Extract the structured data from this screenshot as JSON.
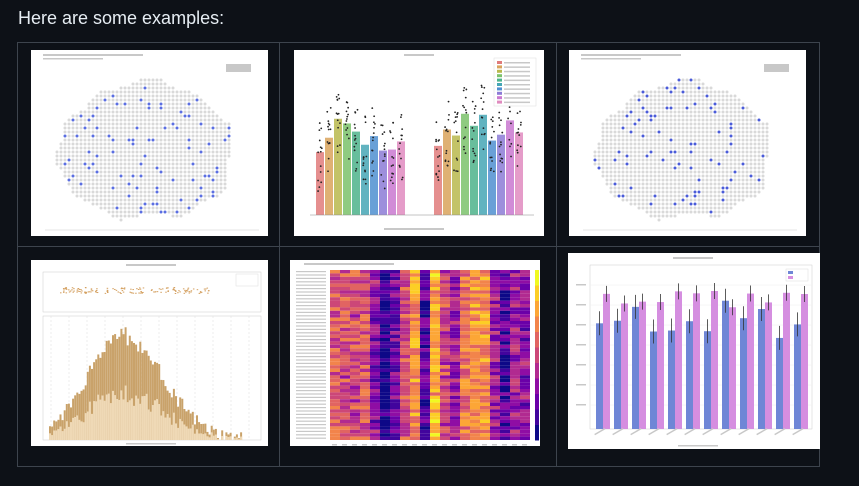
{
  "heading": "Here are some examples:",
  "thumbnails": [
    {
      "name": "spatial-spot-map-1",
      "kind": "spatial-hex",
      "dot_color": "#5b6ee1"
    },
    {
      "name": "grouped-bar-swarm",
      "kind": "bar-swarm"
    },
    {
      "name": "spatial-spot-map-2",
      "kind": "spatial-hex",
      "dot_color": "#4a5bd8"
    },
    {
      "name": "stacked-histogram",
      "kind": "histogram",
      "color_dark": "#c9a26a",
      "color_light": "#efd9b6"
    },
    {
      "name": "heatmap",
      "kind": "heatmap"
    },
    {
      "name": "paired-bar-chart",
      "kind": "paired-bar",
      "color_a": "#6f86d6",
      "color_b": "#d58ee0"
    }
  ]
}
